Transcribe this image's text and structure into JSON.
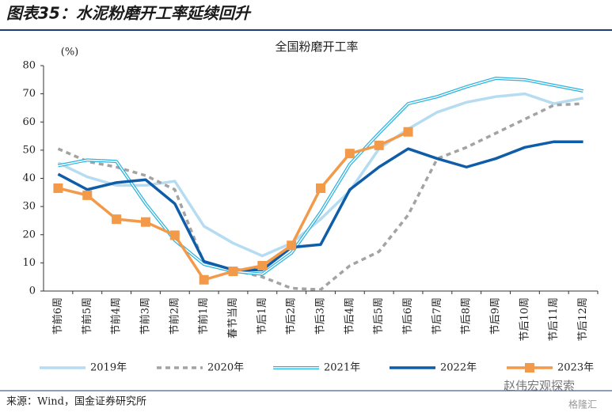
{
  "header": {
    "title": "图表35：水泥粉磨开工率延续回升"
  },
  "chart_data": {
    "type": "line",
    "title": "全国粉磨开工率",
    "y_label": "(%)",
    "categories": [
      "节前6周",
      "节前5周",
      "节前4周",
      "节前3周",
      "节前2周",
      "节前1周",
      "春节当周",
      "节后1周",
      "节后2周",
      "节后3周",
      "节后4周",
      "节后5周",
      "节后6周",
      "节后7周",
      "节后8周",
      "节后9周",
      "节后10周",
      "节后11周",
      "节后12周"
    ],
    "series": [
      {
        "name": "2019年",
        "color": "#b6dcf2",
        "line_style": "solid",
        "values": [
          45.5,
          40.5,
          37.5,
          37.5,
          39,
          23,
          17,
          12.5,
          17,
          25.5,
          35.5,
          50.5,
          57.5,
          63.5,
          67,
          69,
          70,
          66.5,
          68.5
        ]
      },
      {
        "name": "2020年",
        "color": "#a3a3a3",
        "line_style": "dashed",
        "values": [
          50.5,
          46,
          44,
          41,
          36,
          10,
          7.5,
          5,
          1,
          0.5,
          9,
          14,
          27,
          47,
          51,
          56,
          61,
          66,
          66.5
        ]
      },
      {
        "name": "2021年",
        "color": "#2bb3df",
        "line_style": "double",
        "values": [
          44.5,
          46.5,
          46,
          31,
          18,
          9.5,
          7,
          6,
          13.5,
          28,
          45,
          56,
          66.5,
          69,
          72.5,
          75.5,
          75,
          73,
          71
        ]
      },
      {
        "name": "2022年",
        "color": "#0f5ca8",
        "line_style": "solid",
        "values": [
          41.5,
          36,
          38.5,
          39.5,
          31,
          10.5,
          7.5,
          7.5,
          15.5,
          16.5,
          36,
          44,
          50.5,
          47,
          44,
          47,
          51,
          53,
          53
        ]
      },
      {
        "name": "2023年",
        "color": "#f39a4a",
        "line_style": "solid",
        "marker": "square",
        "values": [
          36.5,
          34,
          25.5,
          24.5,
          19.8,
          4,
          7,
          9,
          16.2,
          36.5,
          48.8,
          51.7,
          56.5,
          null,
          null,
          null,
          null,
          null,
          null
        ]
      }
    ],
    "ylim": [
      0,
      80
    ],
    "yticks": [
      0,
      10,
      20,
      30,
      40,
      50,
      60,
      70,
      80
    ],
    "grid": false
  },
  "footer": {
    "source": "来源：Wind，国金证券研究所",
    "watermark": "赵伟宏观探索",
    "logo": "格隆汇"
  }
}
